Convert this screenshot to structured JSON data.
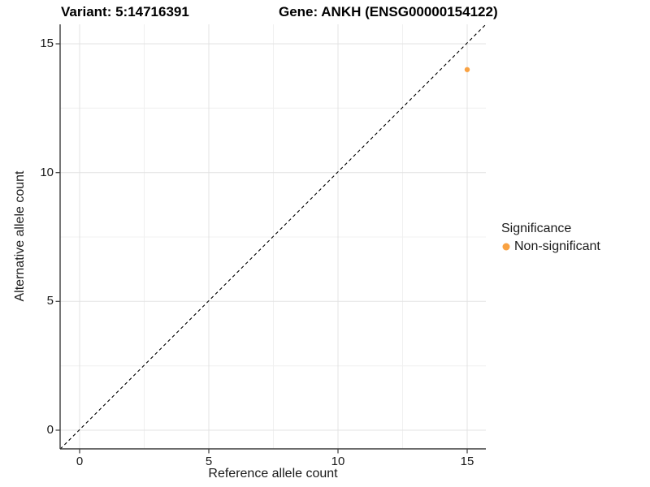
{
  "header": {
    "title_left": "Variant: 5:14716391",
    "title_right": "Gene: ANKH (ENSG00000154122)"
  },
  "chart_data": {
    "type": "scatter",
    "title": "Variant: 5:14716391   Gene: ANKH (ENSG00000154122)",
    "xlabel": "Reference allele count",
    "ylabel": "Alternative allele count",
    "xlim": [
      -0.75,
      15.75
    ],
    "ylim": [
      -0.75,
      15.75
    ],
    "x_ticks": [
      0,
      5,
      10,
      15
    ],
    "y_ticks": [
      0,
      5,
      10,
      15
    ],
    "x_tick_labels": [
      "0",
      "5",
      "10",
      "15"
    ],
    "y_tick_labels": [
      "0",
      "5",
      "10",
      "15"
    ],
    "grid": "major and minor gridlines on",
    "points": [
      {
        "x": 15,
        "y": 14,
        "series": "Non-significant"
      }
    ],
    "reference_line": {
      "type": "identity y=x",
      "style": "dashed",
      "color": "#000000"
    },
    "legend": {
      "position": "right",
      "title": "Significance",
      "items": [
        {
          "label": "Non-significant",
          "color": "#F9A242"
        }
      ]
    },
    "colors": {
      "point": "#F9A242",
      "grid_major": "#e3e3e3",
      "grid_minor": "#f0f0f0",
      "axis": "#3c3c3c",
      "background": "#ffffff"
    }
  }
}
